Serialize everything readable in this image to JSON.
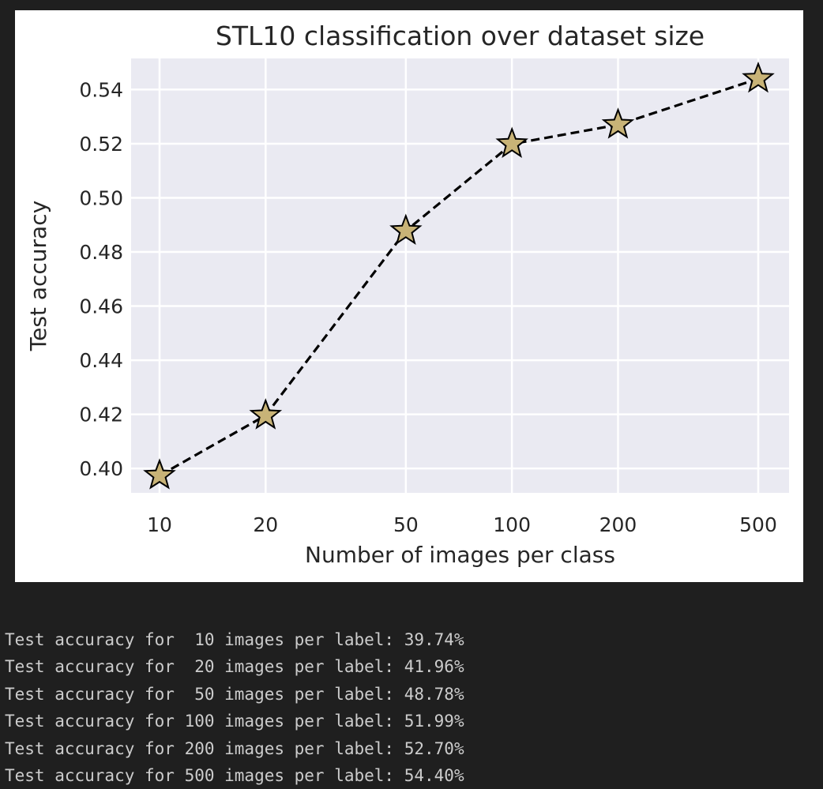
{
  "chart_data": {
    "type": "line",
    "title": "STL10 classification over dataset size",
    "xlabel": "Number of images per class",
    "ylabel": "Test accuracy",
    "x_scale": "log",
    "x": [
      10,
      20,
      50,
      100,
      200,
      500
    ],
    "x_tick_labels": [
      "10",
      "20",
      "50",
      "100",
      "200",
      "500"
    ],
    "y_ticks": [
      0.4,
      0.42,
      0.44,
      0.46,
      0.48,
      0.5,
      0.52,
      0.54
    ],
    "y_tick_labels": [
      "0.40",
      "0.42",
      "0.44",
      "0.46",
      "0.48",
      "0.50",
      "0.52",
      "0.54"
    ],
    "ylim": [
      0.391,
      0.5515
    ],
    "series": [
      {
        "values": [
          0.3974,
          0.4196,
          0.4878,
          0.5199,
          0.527,
          0.544
        ],
        "line_style": "dashed",
        "line_color": "#000000",
        "marker": "star",
        "marker_color": "#c8b377"
      }
    ],
    "grid": true,
    "plot_background": "#eaeaf2"
  },
  "output": {
    "lines": [
      "Test accuracy for  10 images per label: 39.74%",
      "Test accuracy for  20 images per label: 41.96%",
      "Test accuracy for  50 images per label: 48.78%",
      "Test accuracy for 100 images per label: 51.99%",
      "Test accuracy for 200 images per label: 52.70%",
      "Test accuracy for 500 images per label: 54.40%"
    ]
  }
}
